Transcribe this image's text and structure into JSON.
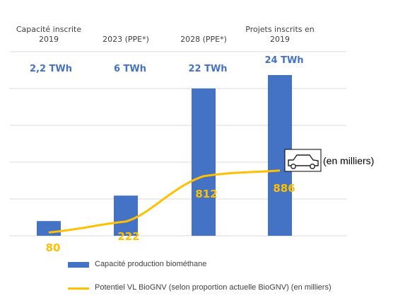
{
  "colors": {
    "bar": "#4472C4",
    "line": "#FFC000",
    "grid": "#D9D9D9",
    "label_bar": "#4472C4",
    "label_line": "#FFC000"
  },
  "chart_data": {
    "type": "bar",
    "categories": [
      [
        "Capacité inscrite",
        "2019"
      ],
      [
        "2023 (PPE*)"
      ],
      [
        "2028 (PPE*)"
      ],
      [
        "Projets inscrits en",
        "2019"
      ]
    ],
    "series": [
      {
        "name": "Capacité production biométhane",
        "type": "bar",
        "values": [
          2.2,
          6,
          22,
          24
        ],
        "value_labels": [
          "2,2 TWh",
          "6 TWh",
          "22 TWh",
          "24 TWh"
        ]
      },
      {
        "name": "Potentiel VL BioGNV (selon proportion actuelle BioGNV) (en milliers)",
        "type": "line",
        "values": [
          80,
          222,
          812,
          886
        ],
        "value_labels": [
          "80",
          "222",
          "812",
          "886"
        ]
      }
    ],
    "grid": true,
    "legend": "bottom",
    "annotation": "(en milliers)",
    "annotation_icon": "car-icon"
  },
  "legend": {
    "bar_label": "Capacité production biométhane",
    "line_label": "Potentiel VL BioGNV (selon proportion actuelle BioGNV) (en milliers)"
  }
}
